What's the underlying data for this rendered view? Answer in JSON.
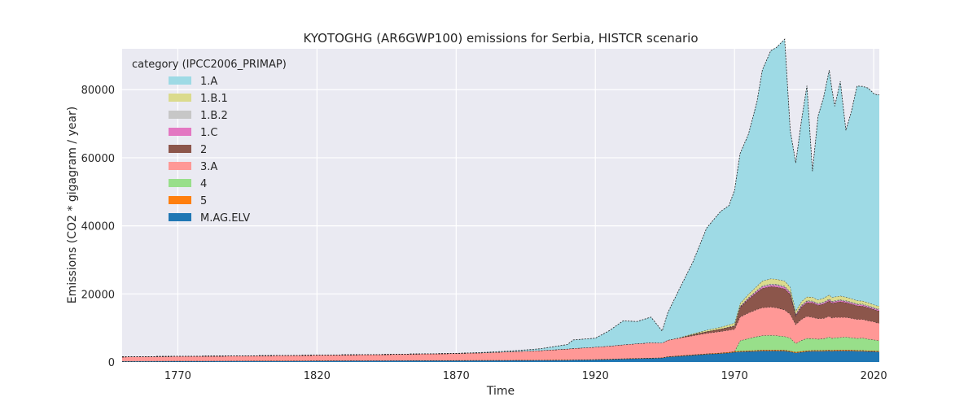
{
  "chart_data": {
    "type": "area",
    "title": "KYOTOGHG (AR6GWP100) emissions for Serbia, HISTCR scenario",
    "xlabel": "Time",
    "ylabel": "Emissions (CO2 * gigagram / year)",
    "xlim": [
      1750,
      2022
    ],
    "ylim": [
      0,
      92000
    ],
    "x_ticks": [
      1770,
      1820,
      1870,
      1920,
      1970,
      2020
    ],
    "y_ticks": [
      0,
      20000,
      40000,
      60000,
      80000
    ],
    "grid": true,
    "legend": {
      "title": "category (IPCC2006_PRIMAP)",
      "placement": "top-left"
    },
    "colors": {
      "plot_background": "#eaeaf2",
      "grid": "#ffffff",
      "outline": "#222222"
    },
    "x": [
      1750,
      1760,
      1770,
      1780,
      1790,
      1800,
      1810,
      1820,
      1830,
      1840,
      1850,
      1860,
      1870,
      1880,
      1890,
      1900,
      1910,
      1912,
      1920,
      1925,
      1930,
      1935,
      1940,
      1944,
      1946,
      1950,
      1955,
      1960,
      1965,
      1968,
      1970,
      1972,
      1975,
      1978,
      1980,
      1983,
      1985,
      1988,
      1990,
      1992,
      1994,
      1996,
      1998,
      2000,
      2002,
      2004,
      2005,
      2006,
      2008,
      2010,
      2012,
      2014,
      2016,
      2018,
      2020,
      2021,
      2022
    ],
    "series": [
      {
        "name": "M.AG.ELV",
        "color": "#1f77b4",
        "values": [
          200,
          220,
          240,
          260,
          280,
          300,
          320,
          340,
          360,
          380,
          400,
          420,
          440,
          460,
          480,
          500,
          560,
          600,
          700,
          800,
          900,
          1000,
          1100,
          1200,
          1500,
          1700,
          2000,
          2300,
          2500,
          2700,
          2900,
          3000,
          3100,
          3200,
          3300,
          3300,
          3300,
          3250,
          3000,
          2700,
          2900,
          3100,
          3200,
          3200,
          3200,
          3300,
          3200,
          3300,
          3300,
          3300,
          3300,
          3200,
          3200,
          3100,
          3100,
          3000,
          3000
        ]
      },
      {
        "name": "5",
        "color": "#ff7f0e",
        "values": [
          50,
          50,
          50,
          50,
          50,
          50,
          50,
          60,
          60,
          60,
          60,
          60,
          70,
          70,
          70,
          80,
          80,
          80,
          90,
          90,
          100,
          100,
          100,
          100,
          120,
          130,
          150,
          170,
          190,
          200,
          220,
          230,
          240,
          250,
          260,
          260,
          260,
          260,
          260,
          250,
          250,
          250,
          250,
          250,
          250,
          250,
          250,
          250,
          250,
          250,
          250,
          250,
          250,
          250,
          250,
          250,
          250
        ]
      },
      {
        "name": "4",
        "color": "#98df8a",
        "values": [
          0,
          0,
          0,
          0,
          0,
          0,
          0,
          0,
          0,
          0,
          0,
          0,
          0,
          0,
          0,
          0,
          0,
          0,
          0,
          0,
          0,
          0,
          0,
          0,
          0,
          0,
          0,
          0,
          0,
          0,
          0,
          3000,
          3600,
          4000,
          4200,
          4300,
          4200,
          4000,
          3800,
          2500,
          3200,
          3600,
          3400,
          3300,
          3400,
          3800,
          3500,
          3600,
          3700,
          3800,
          3600,
          3500,
          3600,
          3400,
          3200,
          3100,
          3000
        ]
      },
      {
        "name": "3.A",
        "color": "#ff9896",
        "values": [
          1250,
          1300,
          1350,
          1400,
          1450,
          1500,
          1550,
          1600,
          1650,
          1700,
          1800,
          1900,
          2000,
          2200,
          2500,
          2800,
          3200,
          3300,
          3600,
          3800,
          4100,
          4300,
          4500,
          4300,
          4800,
          5200,
          5600,
          6000,
          6300,
          6500,
          6500,
          7000,
          7500,
          8000,
          8200,
          8300,
          8200,
          7800,
          7000,
          5600,
          6200,
          6500,
          6300,
          6000,
          6000,
          6100,
          6000,
          6000,
          5900,
          5800,
          5700,
          5600,
          5500,
          5400,
          5300,
          5200,
          5200
        ]
      },
      {
        "name": "2",
        "color": "#8c564b",
        "values": [
          0,
          0,
          0,
          0,
          0,
          0,
          0,
          0,
          0,
          0,
          0,
          0,
          0,
          0,
          0,
          0,
          0,
          0,
          0,
          0,
          0,
          0,
          0,
          0,
          0,
          0,
          300,
          500,
          700,
          800,
          900,
          2800,
          4000,
          5000,
          5700,
          6000,
          6100,
          6200,
          5800,
          2500,
          3600,
          4000,
          4200,
          3900,
          4200,
          4500,
          4300,
          4300,
          4600,
          4300,
          4200,
          4000,
          3900,
          3800,
          3600,
          3600,
          3600
        ]
      },
      {
        "name": "1.C",
        "color": "#e377c2",
        "values": [
          0,
          0,
          0,
          0,
          0,
          0,
          0,
          0,
          0,
          0,
          0,
          0,
          0,
          0,
          0,
          0,
          0,
          0,
          0,
          0,
          0,
          0,
          0,
          0,
          0,
          0,
          0,
          0,
          0,
          50,
          100,
          200,
          300,
          400,
          450,
          500,
          500,
          500,
          450,
          300,
          350,
          350,
          350,
          350,
          350,
          350,
          350,
          350,
          350,
          350,
          350,
          350,
          350,
          350,
          350,
          350,
          350
        ]
      },
      {
        "name": "1.B.2",
        "color": "#c7c7c7",
        "values": [
          0,
          0,
          0,
          0,
          0,
          0,
          0,
          0,
          0,
          0,
          0,
          0,
          0,
          0,
          0,
          0,
          0,
          0,
          0,
          0,
          0,
          0,
          0,
          0,
          0,
          0,
          0,
          0,
          0,
          50,
          100,
          150,
          200,
          250,
          300,
          300,
          300,
          300,
          300,
          250,
          250,
          250,
          250,
          250,
          250,
          250,
          250,
          250,
          250,
          250,
          250,
          250,
          250,
          250,
          250,
          250,
          250
        ]
      },
      {
        "name": "1.B.1",
        "color": "#dbdb8d",
        "values": [
          0,
          0,
          0,
          0,
          0,
          0,
          0,
          0,
          0,
          0,
          0,
          0,
          0,
          0,
          0,
          0,
          0,
          0,
          0,
          0,
          0,
          0,
          0,
          0,
          0,
          100,
          250,
          400,
          550,
          650,
          750,
          850,
          1000,
          1200,
          1400,
          1500,
          1500,
          1500,
          1400,
          900,
          1000,
          1100,
          1100,
          1000,
          1100,
          1200,
          1100,
          1100,
          1100,
          1000,
          1000,
          900,
          900,
          900,
          800,
          800,
          800
        ]
      },
      {
        "name": "1.A",
        "color": "#9edae5",
        "values": [
          0,
          0,
          0,
          0,
          0,
          0,
          0,
          0,
          0,
          0,
          0,
          0,
          0,
          100,
          200,
          500,
          1300,
          2500,
          2600,
          4500,
          7000,
          6500,
          7500,
          3500,
          8000,
          14000,
          21000,
          30000,
          34000,
          35000,
          39000,
          44000,
          47000,
          54000,
          62000,
          67000,
          68000,
          71000,
          46000,
          43500,
          53000,
          62000,
          37000,
          54000,
          59000,
          66000,
          61000,
          56000,
          63000,
          49000,
          55000,
          63000,
          63000,
          63000,
          62000,
          62000,
          62000
        ]
      }
    ]
  }
}
